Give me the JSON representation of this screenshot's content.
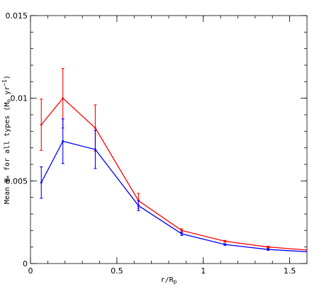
{
  "chart_data": {
    "type": "line",
    "xlabel": "r/R",
    "xlabel_sub": "p",
    "ylabel": "Mean Ψ",
    "ylabel_sub": "*",
    "ylabel_mid": " for all types (M",
    "ylabel_sun_sub": "⊙",
    "ylabel_unit": " yr",
    "ylabel_exp": "−1",
    "ylabel_close": ")",
    "xlim": [
      0,
      1.6
    ],
    "ylim": [
      0,
      0.015
    ],
    "xticks": [
      {
        "value": 0,
        "label": "0"
      },
      {
        "value": 0.5,
        "label": "0.5"
      },
      {
        "value": 1,
        "label": "1"
      },
      {
        "value": 1.5,
        "label": "1.5"
      }
    ],
    "yticks": [
      {
        "value": 0,
        "label": "0"
      },
      {
        "value": 0.005,
        "label": "0.005"
      },
      {
        "value": 0.01,
        "label": "0.01"
      },
      {
        "value": 0.015,
        "label": "0.015"
      }
    ],
    "x_minor_step": 0.1,
    "y_minor_step": 0.001,
    "grid": false,
    "series": [
      {
        "color": "#ff0000",
        "x": [
          0.0625,
          0.1875,
          0.375,
          0.625,
          0.875,
          1.125,
          1.375,
          1.625
        ],
        "y": [
          0.0084,
          0.01,
          0.0082,
          0.0038,
          0.002,
          0.00135,
          0.001,
          0.0008
        ],
        "err": [
          0.00155,
          0.0018,
          0.0014,
          0.00045,
          0.0001,
          5e-05,
          5e-05,
          5e-05
        ]
      },
      {
        "color": "#0000ff",
        "x": [
          0.0625,
          0.1875,
          0.375,
          0.625,
          0.875,
          1.125,
          1.375,
          1.625
        ],
        "y": [
          0.0049,
          0.0074,
          0.0069,
          0.0035,
          0.0018,
          0.00115,
          0.00085,
          0.0007
        ],
        "err": [
          0.00095,
          0.00135,
          0.00115,
          0.0003,
          0.0001,
          5e-05,
          5e-05,
          5e-05
        ]
      }
    ]
  }
}
